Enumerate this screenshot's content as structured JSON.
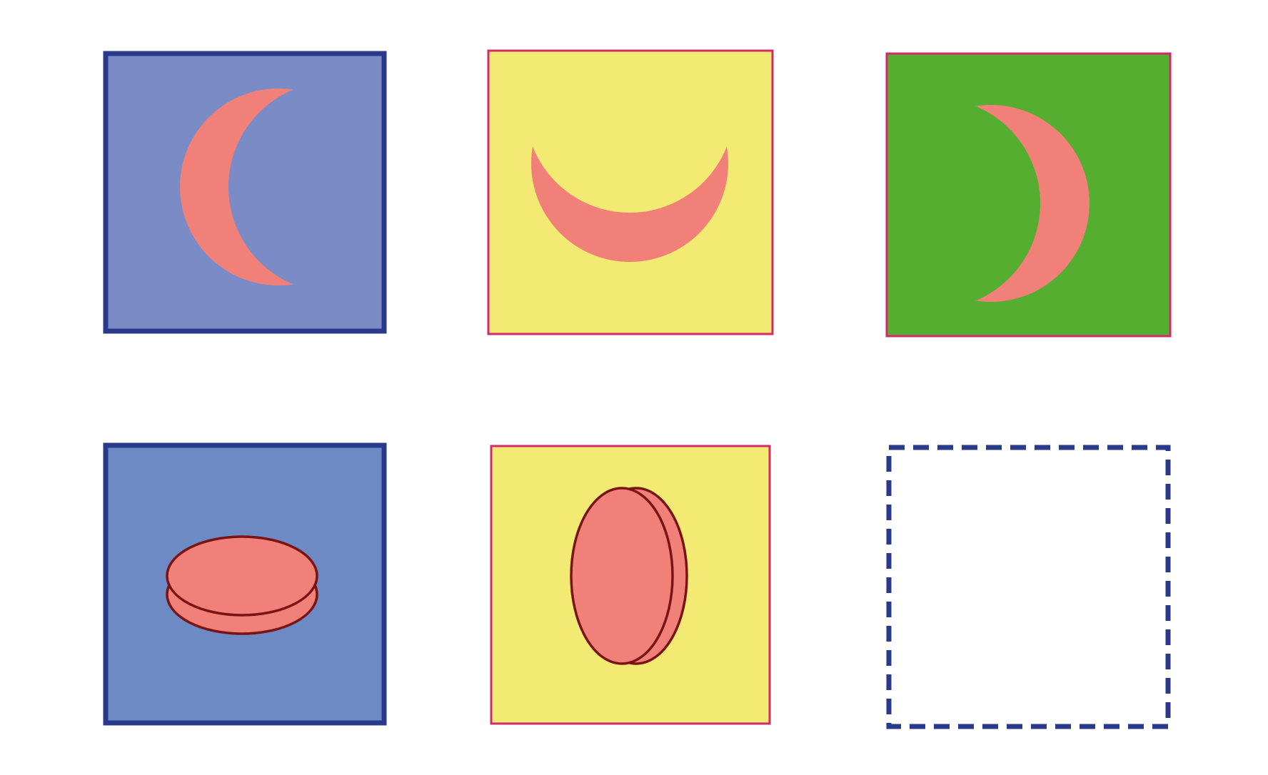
{
  "puzzle": {
    "rows": [
      {
        "cells": [
          {
            "shape": "crescent-moon",
            "opening": "right",
            "background_color": "#7b8bc5",
            "border_color": "#2a3a8a",
            "border_style": "solid-thick",
            "shape_color": "#f08078"
          },
          {
            "shape": "crescent-moon",
            "opening": "up",
            "background_color": "#f2ea73",
            "border_color": "#d22a6a",
            "border_style": "solid-thin",
            "shape_color": "#f08078"
          },
          {
            "shape": "crescent-moon",
            "opening": "left",
            "background_color": "#55ae2f",
            "border_color": "#d22a6a",
            "border_style": "solid-thin",
            "shape_color": "#f08078"
          }
        ]
      },
      {
        "cells": [
          {
            "shape": "stacked-discs",
            "orientation": "horizontal",
            "background_color": "#6e8ac4",
            "border_color": "#2a3a8a",
            "border_style": "solid-thick",
            "shape_color": "#f08078",
            "outline_color": "#7a1414"
          },
          {
            "shape": "stacked-discs",
            "orientation": "vertical",
            "background_color": "#f2ea73",
            "border_color": "#d22a6a",
            "border_style": "solid-thin",
            "shape_color": "#f08078",
            "outline_color": "#7a1414"
          },
          {
            "shape": "missing",
            "background_color": "#ffffff",
            "border_color": "#2a3a8a",
            "border_style": "dashed"
          }
        ]
      }
    ]
  }
}
